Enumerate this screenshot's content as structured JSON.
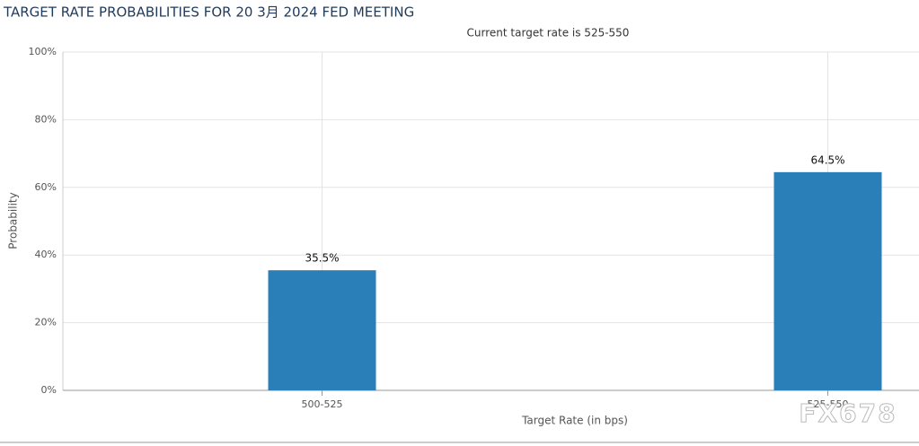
{
  "chart_data": {
    "type": "bar",
    "title": "TARGET RATE PROBABILITIES FOR 20 3月 2024 FED MEETING",
    "subtitle": "Current target rate is 525-550",
    "x_label": "Target Rate (in bps)",
    "y_label": "Probability",
    "categories": [
      "500-525",
      "525-550"
    ],
    "values": [
      35.5,
      64.5
    ],
    "value_labels": [
      "35.5%",
      "64.5%"
    ],
    "color": "#2a7fb8",
    "ylim": [
      0,
      100
    ],
    "yticks": [
      {
        "value": 0,
        "label": "0%"
      },
      {
        "value": 20,
        "label": "20%"
      },
      {
        "value": 40,
        "label": "40%"
      },
      {
        "value": 60,
        "label": "60%"
      },
      {
        "value": 80,
        "label": "80%"
      },
      {
        "value": 100,
        "label": "100%"
      }
    ],
    "grid": true,
    "watermark": "FX678"
  }
}
